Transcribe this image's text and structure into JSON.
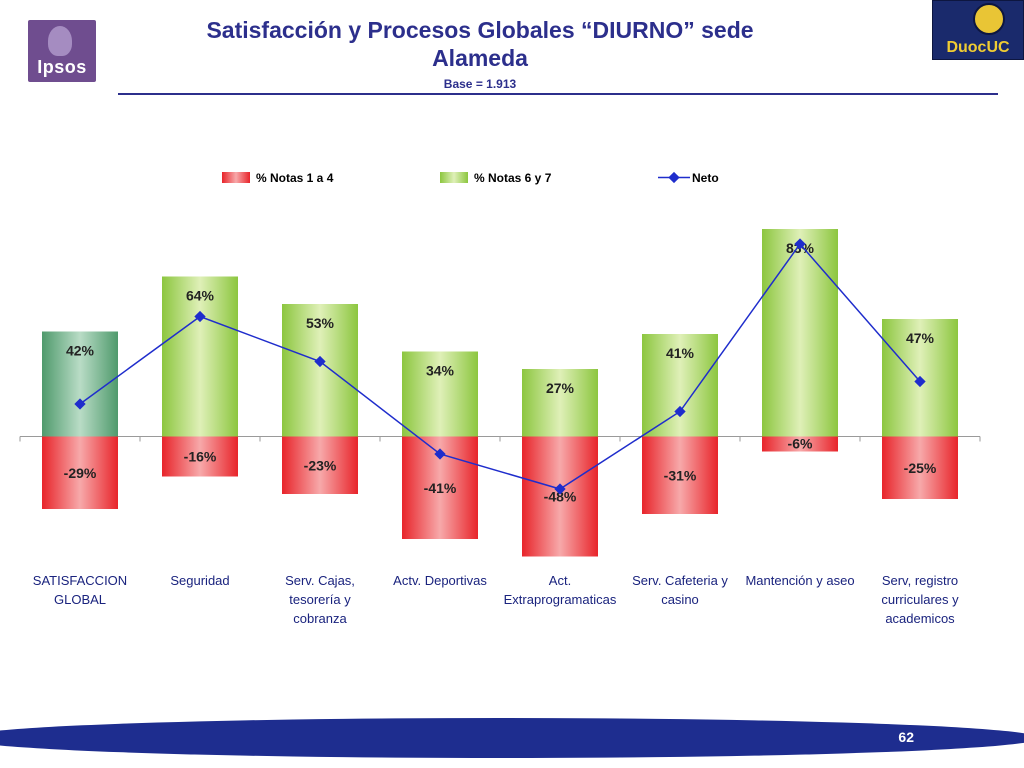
{
  "header": {
    "title_line1": "Satisfacción y Procesos Globales “DIURNO” sede",
    "title_line2": "Alameda",
    "subtitle": "Base = 1.913",
    "logo_left": "Ipsos",
    "logo_right": "DuocUC"
  },
  "footer": {
    "page_number": "62"
  },
  "colors": {
    "negative": "#e8242a",
    "positive": "#8cc63f",
    "positive_first": "#4f9a6c",
    "neto": "#1f2dcc",
    "title": "#2c2f8c",
    "footer_band": "#1e2d8f"
  },
  "chart_data": {
    "type": "bar",
    "legend_position": "top",
    "categories": [
      [
        "SATISFACCION",
        "GLOBAL"
      ],
      [
        "Seguridad"
      ],
      [
        "Serv. Cajas,",
        "tesorería y",
        "cobranza"
      ],
      [
        "Actv. Deportivas"
      ],
      [
        "Act.",
        "Extraprogramaticas"
      ],
      [
        "Serv. Cafeteria y",
        "casino"
      ],
      [
        "Mantención y aseo"
      ],
      [
        "Serv, registro",
        "curriculares y",
        "academicos"
      ]
    ],
    "series": [
      {
        "name": "% Notas 1 a 4",
        "kind": "bar",
        "values": [
          -29,
          -16,
          -23,
          -41,
          -48,
          -31,
          -6,
          -25
        ],
        "labels": [
          "-29%",
          "-16%",
          "-23%",
          "-41%",
          "-48%",
          "-31%",
          "-6%",
          "-25%"
        ]
      },
      {
        "name": "% Notas 6 y 7",
        "kind": "bar",
        "values": [
          42,
          64,
          53,
          34,
          27,
          41,
          83,
          47
        ],
        "labels": [
          "42%",
          "64%",
          "53%",
          "34%",
          "27%",
          "41%",
          "83%",
          "47%"
        ]
      },
      {
        "name": "Neto",
        "kind": "line",
        "values": [
          13,
          48,
          30,
          -7,
          -21,
          10,
          77,
          22
        ]
      }
    ],
    "ylim": [
      -50,
      90
    ],
    "grid": false
  }
}
